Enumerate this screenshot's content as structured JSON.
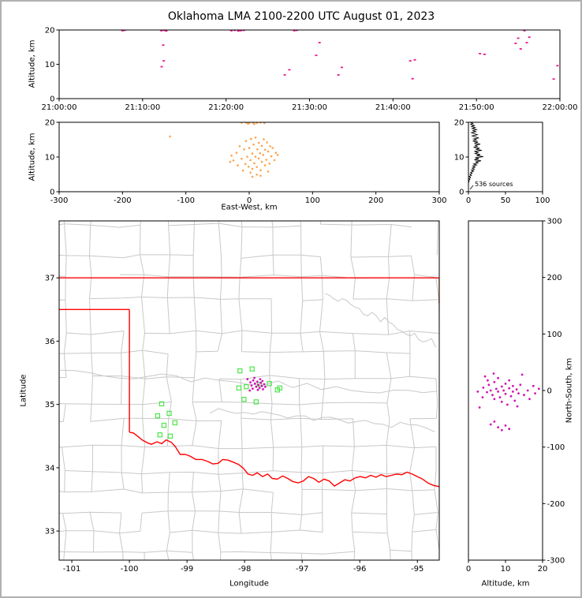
{
  "title": "Oklahoma LMA 2100-2200 UTC August 01, 2023",
  "colors": {
    "time_sources": "#f0148c",
    "ew_sources": "#ffa24d",
    "map_sources": "#d412b4",
    "ns_sources": "#d412b4",
    "stations": "#4de64d",
    "state_border": "#ff0000",
    "county_lines": "#c8c8c8",
    "histogram_line": "#000000",
    "axis": "#000000"
  },
  "chart_data": [
    {
      "id": "time_height",
      "type": "scatter",
      "xlabel": "",
      "ylabel": "Altitude, km",
      "xlim": [
        0,
        3600
      ],
      "ylim": [
        0,
        20
      ],
      "xticks": [
        0,
        600,
        1200,
        1800,
        2400,
        3000,
        3600
      ],
      "xtick_labels": [
        "21:00:00",
        "21:10:00",
        "21:20:00",
        "21:30:00",
        "21:40:00",
        "21:50:00",
        "22:00:00"
      ],
      "yticks": [
        0,
        10,
        20
      ],
      "ytick_labels": [
        "0",
        "10",
        "20"
      ],
      "points": [
        [
          455,
          19.8
        ],
        [
          470,
          19.9
        ],
        [
          735,
          19.8
        ],
        [
          755,
          19.9
        ],
        [
          770,
          19.7
        ],
        [
          748,
          15.6
        ],
        [
          737,
          9.3
        ],
        [
          752,
          11.0
        ],
        [
          1238,
          19.8
        ],
        [
          1262,
          19.9
        ],
        [
          1288,
          19.7
        ],
        [
          1306,
          19.8
        ],
        [
          1327,
          19.9
        ],
        [
          1690,
          19.8
        ],
        [
          1708,
          19.9
        ],
        [
          1622,
          6.9
        ],
        [
          1655,
          8.4
        ],
        [
          1848,
          12.6
        ],
        [
          1872,
          16.3
        ],
        [
          2008,
          6.9
        ],
        [
          2032,
          9.1
        ],
        [
          2524,
          11.0
        ],
        [
          2541,
          5.8
        ],
        [
          2557,
          11.3
        ],
        [
          3025,
          13.1
        ],
        [
          3058,
          12.9
        ],
        [
          3282,
          16.1
        ],
        [
          3300,
          17.6
        ],
        [
          3318,
          14.5
        ],
        [
          3345,
          19.8
        ],
        [
          3362,
          16.3
        ],
        [
          3380,
          17.9
        ],
        [
          3555,
          5.7
        ],
        [
          3582,
          9.6
        ]
      ]
    },
    {
      "id": "ew_height",
      "type": "scatter",
      "xlabel": "East-West, km",
      "ylabel": "Altitude, km",
      "xlim": [
        -300,
        300
      ],
      "ylim": [
        0,
        20
      ],
      "xticks": [
        -300,
        -200,
        -100,
        0,
        100,
        200,
        300
      ],
      "xtick_labels": [
        "-300",
        "-200",
        "-100",
        "0",
        "100",
        "200",
        "300"
      ],
      "yticks": [
        0,
        10,
        20
      ],
      "ytick_labels": [
        "0",
        "10",
        "20"
      ],
      "points": [
        [
          -12,
          19.9
        ],
        [
          -5,
          19.9
        ],
        [
          0,
          19.8
        ],
        [
          6,
          19.9
        ],
        [
          12,
          19.8
        ],
        [
          18,
          19.9
        ],
        [
          -2,
          19.6
        ],
        [
          8,
          19.5
        ],
        [
          24,
          19.8
        ],
        [
          -125,
          15.9
        ],
        [
          -30,
          8.6
        ],
        [
          -28,
          10.4
        ],
        [
          -25,
          9.0
        ],
        [
          -20,
          11.2
        ],
        [
          -18,
          7.6
        ],
        [
          -15,
          13.1
        ],
        [
          -12,
          9.5
        ],
        [
          -10,
          6.1
        ],
        [
          -8,
          12.2
        ],
        [
          -6,
          8.0
        ],
        [
          -5,
          14.6
        ],
        [
          -3,
          10.1
        ],
        [
          -1,
          7.2
        ],
        [
          0,
          12.6
        ],
        [
          2,
          9.1
        ],
        [
          3,
          15.2
        ],
        [
          5,
          6.6
        ],
        [
          5,
          11.0
        ],
        [
          7,
          13.6
        ],
        [
          8,
          8.2
        ],
        [
          10,
          10.1
        ],
        [
          10,
          15.6
        ],
        [
          12,
          7.1
        ],
        [
          13,
          12.2
        ],
        [
          15,
          9.6
        ],
        [
          15,
          14.1
        ],
        [
          17,
          11.1
        ],
        [
          18,
          6.2
        ],
        [
          20,
          13.2
        ],
        [
          20,
          8.6
        ],
        [
          22,
          10.6
        ],
        [
          23,
          15.1
        ],
        [
          25,
          7.6
        ],
        [
          25,
          12.1
        ],
        [
          27,
          9.2
        ],
        [
          28,
          14.2
        ],
        [
          30,
          11.6
        ],
        [
          32,
          8.1
        ],
        [
          33,
          13.1
        ],
        [
          35,
          10.2
        ],
        [
          37,
          12.6
        ],
        [
          40,
          9.1
        ],
        [
          42,
          11.2
        ],
        [
          45,
          10.6
        ],
        [
          5,
          4.3
        ],
        [
          12,
          4.9
        ],
        [
          18,
          4.6
        ],
        [
          2,
          5.5
        ],
        [
          30,
          5.8
        ]
      ]
    },
    {
      "id": "source_histogram",
      "type": "line",
      "annotation": "536 sources",
      "xlabel": "",
      "ylabel": "",
      "xlim": [
        0,
        100
      ],
      "ylim": [
        0,
        20
      ],
      "xticks": [
        0,
        50,
        100
      ],
      "xtick_labels": [
        "0",
        "50",
        "100"
      ],
      "yticks": [
        0,
        10,
        20
      ],
      "ytick_labels": [
        "0",
        "10",
        "20"
      ],
      "line": [
        [
          2,
          20
        ],
        [
          6,
          19.7
        ],
        [
          3,
          19.4
        ],
        [
          8,
          19.1
        ],
        [
          4,
          18.8
        ],
        [
          9,
          18.5
        ],
        [
          5,
          18.2
        ],
        [
          11,
          17.9
        ],
        [
          6,
          17.6
        ],
        [
          10,
          17.3
        ],
        [
          4,
          17.0
        ],
        [
          8,
          16.7
        ],
        [
          12,
          16.4
        ],
        [
          5,
          16.1
        ],
        [
          9,
          15.8
        ],
        [
          14,
          15.5
        ],
        [
          7,
          15.2
        ],
        [
          11,
          14.9
        ],
        [
          6,
          14.6
        ],
        [
          13,
          14.3
        ],
        [
          8,
          14.0
        ],
        [
          16,
          13.7
        ],
        [
          9,
          13.4
        ],
        [
          12,
          13.1
        ],
        [
          7,
          12.8
        ],
        [
          15,
          12.5
        ],
        [
          10,
          12.2
        ],
        [
          18,
          11.9
        ],
        [
          8,
          11.6
        ],
        [
          13,
          11.3
        ],
        [
          9,
          11.0
        ],
        [
          16,
          10.7
        ],
        [
          11,
          10.4
        ],
        [
          20,
          10.1
        ],
        [
          9,
          9.8
        ],
        [
          14,
          9.5
        ],
        [
          8,
          9.2
        ],
        [
          17,
          8.9
        ],
        [
          10,
          8.6
        ],
        [
          13,
          8.3
        ],
        [
          7,
          8.0
        ],
        [
          11,
          7.7
        ],
        [
          6,
          7.4
        ],
        [
          9,
          7.1
        ],
        [
          5,
          6.8
        ],
        [
          8,
          6.5
        ],
        [
          4,
          6.2
        ],
        [
          7,
          5.9
        ],
        [
          3,
          5.6
        ],
        [
          5,
          5.3
        ],
        [
          2,
          5.0
        ],
        [
          4,
          4.7
        ],
        [
          1,
          4.4
        ],
        [
          3,
          4.1
        ],
        [
          1,
          3.8
        ],
        [
          2,
          3.5
        ],
        [
          0,
          3.2
        ],
        [
          1,
          2.9
        ],
        [
          0,
          2.6
        ]
      ]
    },
    {
      "id": "plan_view",
      "type": "scatter",
      "xlabel": "Longitude",
      "ylabel": "Latitude",
      "xlim": [
        -101.22,
        -94.62
      ],
      "ylim": [
        32.54,
        37.9
      ],
      "xticks": [
        -101,
        -100,
        -99,
        -98,
        -97,
        -96,
        -95
      ],
      "xtick_labels": [
        "-101",
        "-100",
        "-99",
        "-98",
        "-97",
        "-96",
        "-95"
      ],
      "yticks": [
        33,
        34,
        35,
        36,
        37
      ],
      "ytick_labels": [
        "33",
        "34",
        "35",
        "36",
        "37"
      ],
      "sources": [
        [
          -97.95,
          35.4
        ],
        [
          -97.9,
          35.35
        ],
        [
          -97.88,
          35.3
        ],
        [
          -97.85,
          35.38
        ],
        [
          -97.82,
          35.33
        ],
        [
          -97.8,
          35.28
        ],
        [
          -97.78,
          35.36
        ],
        [
          -97.76,
          35.31
        ],
        [
          -97.74,
          35.26
        ],
        [
          -97.72,
          35.34
        ],
        [
          -97.7,
          35.29
        ],
        [
          -97.68,
          35.24
        ],
        [
          -97.66,
          35.32
        ],
        [
          -97.77,
          35.23
        ],
        [
          -97.83,
          35.42
        ],
        [
          -97.73,
          35.4
        ],
        [
          -97.69,
          35.37
        ],
        [
          -97.86,
          35.25
        ],
        [
          -97.91,
          35.22
        ],
        [
          -97.64,
          35.28
        ]
      ],
      "stations": [
        [
          -99.44,
          35.01
        ],
        [
          -99.51,
          34.82
        ],
        [
          -99.31,
          34.86
        ],
        [
          -99.4,
          34.67
        ],
        [
          -99.21,
          34.71
        ],
        [
          -99.47,
          34.52
        ],
        [
          -99.29,
          34.5
        ],
        [
          -98.08,
          35.53
        ],
        [
          -97.87,
          35.56
        ],
        [
          -98.1,
          35.26
        ],
        [
          -97.97,
          35.28
        ],
        [
          -97.74,
          35.32
        ],
        [
          -97.57,
          35.33
        ],
        [
          -97.39,
          35.26
        ],
        [
          -98.01,
          35.08
        ],
        [
          -97.8,
          35.04
        ],
        [
          -97.43,
          35.23
        ]
      ],
      "state_border": [
        [
          [
            -101.22,
            37.0
          ],
          [
            -94.62,
            37.0
          ]
        ],
        [
          [
            -94.62,
            37.0
          ],
          [
            -94.62,
            36.6
          ]
        ],
        [
          [
            -101.22,
            36.5
          ],
          [
            -100.0,
            36.5
          ]
        ],
        [
          [
            -100.0,
            36.5
          ],
          [
            -100.0,
            34.56
          ]
        ],
        [
          [
            -100.0,
            34.56
          ],
          [
            -99.93,
            34.55
          ],
          [
            -99.86,
            34.5
          ],
          [
            -99.78,
            34.44
          ],
          [
            -99.7,
            34.4
          ],
          [
            -99.62,
            34.37
          ],
          [
            -99.52,
            34.41
          ],
          [
            -99.44,
            34.38
          ],
          [
            -99.36,
            34.44
          ],
          [
            -99.27,
            34.4
          ],
          [
            -99.2,
            34.33
          ],
          [
            -99.12,
            34.21
          ],
          [
            -99.03,
            34.21
          ],
          [
            -98.94,
            34.18
          ],
          [
            -98.85,
            34.13
          ],
          [
            -98.74,
            34.13
          ],
          [
            -98.64,
            34.1
          ],
          [
            -98.55,
            34.06
          ],
          [
            -98.46,
            34.07
          ],
          [
            -98.38,
            34.13
          ],
          [
            -98.29,
            34.12
          ],
          [
            -98.2,
            34.09
          ],
          [
            -98.1,
            34.05
          ],
          [
            -98.02,
            33.99
          ],
          [
            -97.94,
            33.9
          ],
          [
            -97.86,
            33.88
          ],
          [
            -97.78,
            33.92
          ],
          [
            -97.69,
            33.86
          ],
          [
            -97.6,
            33.9
          ],
          [
            -97.52,
            33.83
          ],
          [
            -97.43,
            33.82
          ],
          [
            -97.34,
            33.87
          ],
          [
            -97.25,
            33.83
          ],
          [
            -97.16,
            33.78
          ],
          [
            -97.07,
            33.76
          ],
          [
            -96.98,
            33.79
          ],
          [
            -96.89,
            33.86
          ],
          [
            -96.8,
            33.83
          ],
          [
            -96.71,
            33.77
          ],
          [
            -96.62,
            33.82
          ],
          [
            -96.53,
            33.79
          ],
          [
            -96.44,
            33.71
          ],
          [
            -96.35,
            33.76
          ],
          [
            -96.26,
            33.81
          ],
          [
            -96.17,
            33.79
          ],
          [
            -96.08,
            33.84
          ],
          [
            -95.99,
            33.86
          ],
          [
            -95.9,
            33.84
          ],
          [
            -95.81,
            33.88
          ],
          [
            -95.72,
            33.85
          ],
          [
            -95.63,
            33.89
          ],
          [
            -95.54,
            33.86
          ],
          [
            -95.45,
            33.88
          ],
          [
            -95.36,
            33.9
          ],
          [
            -95.27,
            33.89
          ],
          [
            -95.18,
            33.93
          ],
          [
            -95.09,
            33.9
          ],
          [
            -95.0,
            33.86
          ],
          [
            -94.91,
            33.82
          ],
          [
            -94.82,
            33.76
          ],
          [
            -94.72,
            33.72
          ],
          [
            -94.62,
            33.7
          ]
        ]
      ]
    },
    {
      "id": "ns_height",
      "type": "scatter",
      "xlabel": "Altitude, km",
      "ylabel": "North-South, km",
      "xlim": [
        0,
        20
      ],
      "ylim": [
        -300,
        300
      ],
      "xticks": [
        0,
        10,
        20
      ],
      "xtick_labels": [
        "0",
        "10",
        "20"
      ],
      "yticks": [
        -300,
        -200,
        -100,
        0,
        100,
        200,
        300
      ],
      "ytick_labels": [
        "-300",
        "-200",
        "-100",
        "0",
        "100",
        "200",
        "300"
      ],
      "points": [
        [
          2.5,
          -2
        ],
        [
          3,
          -30
        ],
        [
          4,
          5
        ],
        [
          4.5,
          25
        ],
        [
          5,
          -3
        ],
        [
          5.5,
          10
        ],
        [
          6,
          0
        ],
        [
          6,
          -60
        ],
        [
          6.5,
          -8
        ],
        [
          7,
          15
        ],
        [
          7,
          -15
        ],
        [
          7,
          -55
        ],
        [
          7.5,
          3
        ],
        [
          8,
          -2
        ],
        [
          8,
          22
        ],
        [
          8,
          -65
        ],
        [
          8.5,
          -12
        ],
        [
          9,
          7
        ],
        [
          9,
          -20
        ],
        [
          9,
          -70
        ],
        [
          9.5,
          0
        ],
        [
          10,
          12
        ],
        [
          10,
          -6
        ],
        [
          10,
          -62
        ],
        [
          10.5,
          -25
        ],
        [
          11,
          4
        ],
        [
          11,
          18
        ],
        [
          11,
          -68
        ],
        [
          11.5,
          -10
        ],
        [
          12,
          -2
        ],
        [
          12,
          8
        ],
        [
          12.5,
          -18
        ],
        [
          13,
          2
        ],
        [
          13.5,
          -5
        ],
        [
          14,
          10
        ],
        [
          14.5,
          28
        ],
        [
          15,
          -8
        ],
        [
          16,
          0
        ],
        [
          18,
          -5
        ],
        [
          19,
          3
        ],
        [
          6.8,
          30
        ],
        [
          5.2,
          18
        ],
        [
          13.2,
          -28
        ],
        [
          16.5,
          -15
        ],
        [
          3.8,
          -12
        ],
        [
          17.5,
          8
        ]
      ]
    }
  ]
}
